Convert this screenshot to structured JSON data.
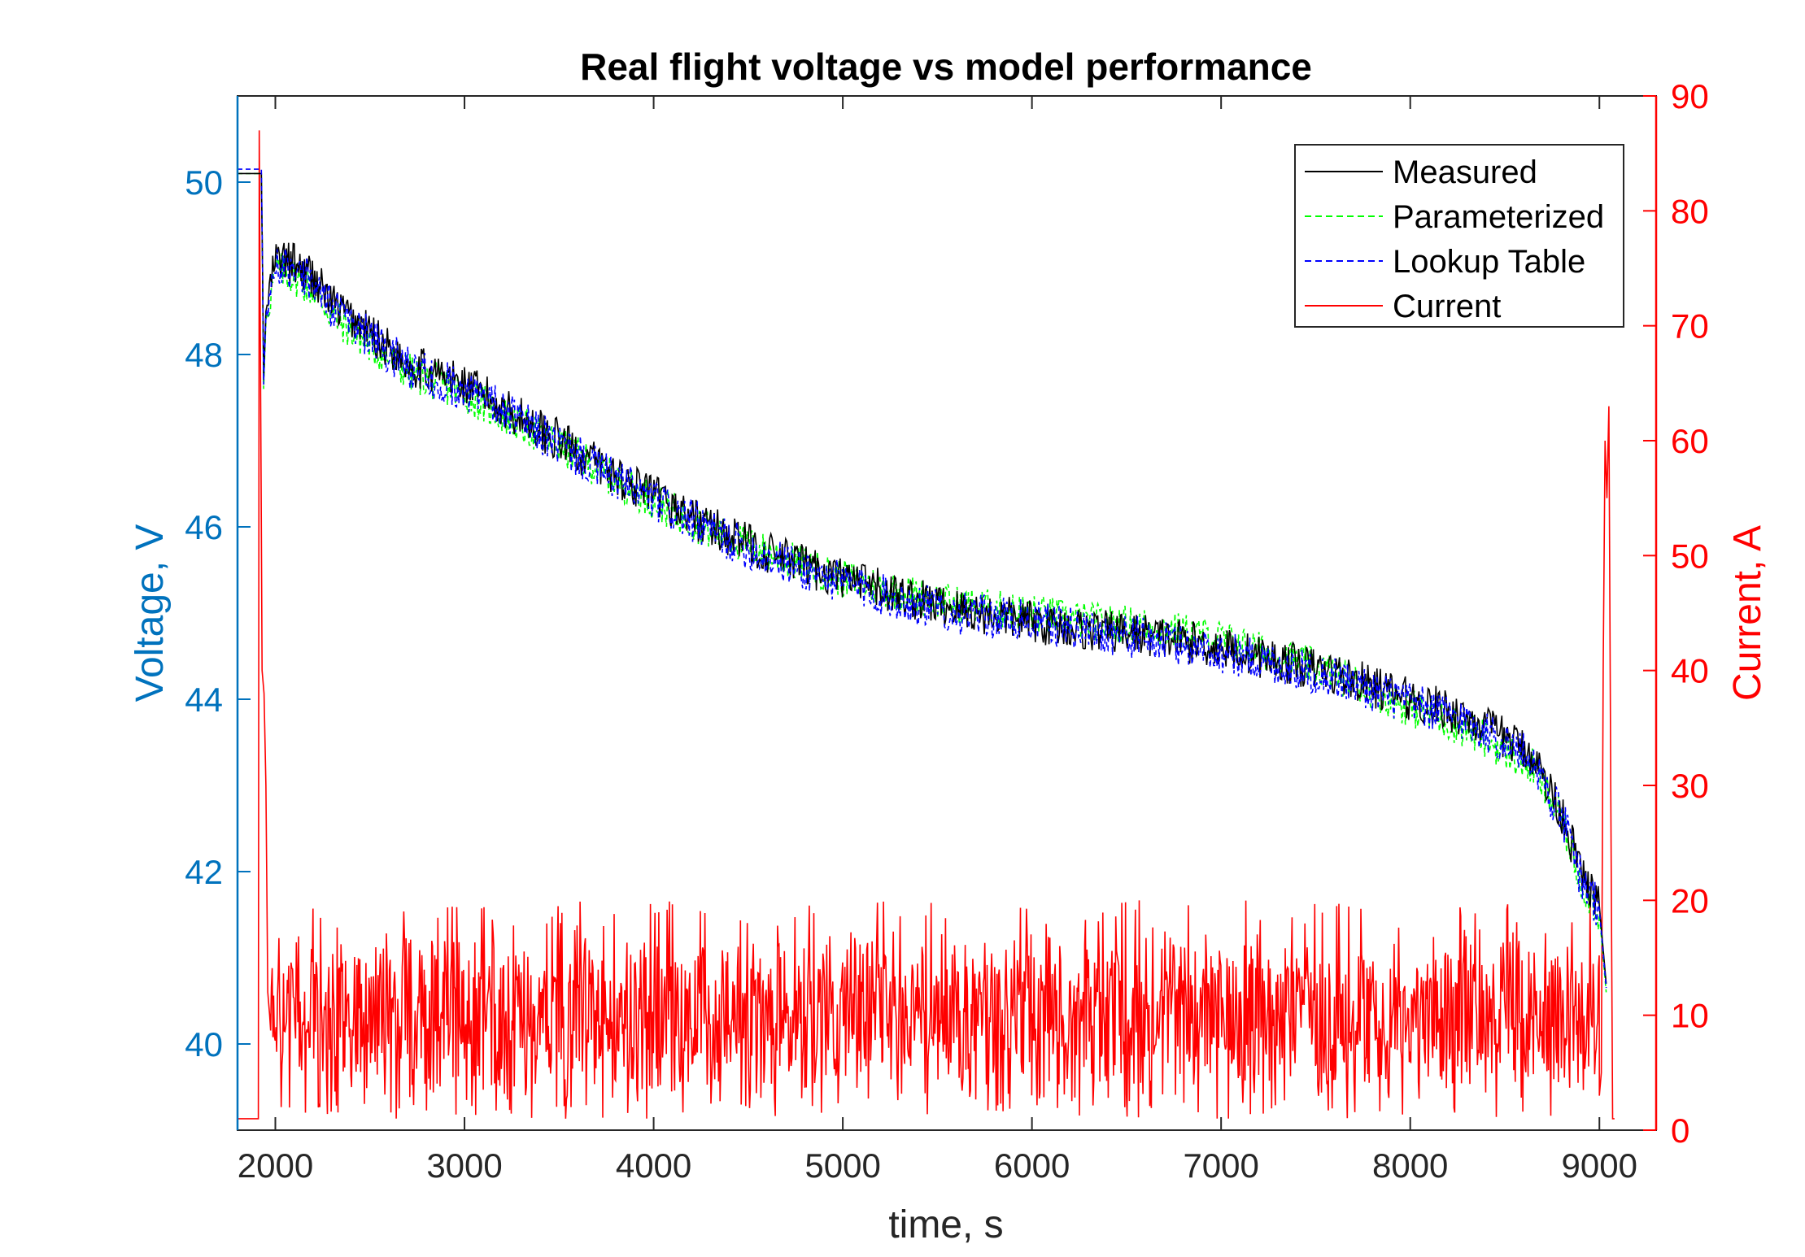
{
  "chart_data": {
    "type": "line",
    "title": "Real flight voltage vs model performance",
    "xlabel": "time, s",
    "ylabel_left": "Voltage, V",
    "ylabel_right": "Current, A",
    "xlim": [
      1800,
      9300
    ],
    "ylim_left": [
      39.0,
      51.0
    ],
    "ylim_right": [
      0,
      90
    ],
    "x_ticks": [
      2000,
      3000,
      4000,
      5000,
      6000,
      7000,
      8000,
      9000
    ],
    "y_ticks_left": [
      40,
      42,
      44,
      46,
      48,
      50
    ],
    "y_ticks_right": [
      0,
      10,
      20,
      30,
      40,
      50,
      60,
      70,
      80,
      90
    ],
    "grid": false,
    "legend_position": "top-right",
    "colors": {
      "measured": "#000000",
      "parameterized": "#00ff00",
      "lookup": "#0000ff",
      "current": "#ff0000",
      "left_axis": "#0072bd",
      "right_axis": "#ff0000"
    },
    "series": [
      {
        "name": "Measured",
        "axis": "left",
        "style": "solid",
        "x": [
          1800,
          1930,
          1935,
          1950,
          2000,
          2100,
          2200,
          2300,
          2500,
          2700,
          3000,
          3200,
          3500,
          3800,
          4000,
          4300,
          4600,
          5000,
          5300,
          5600,
          6000,
          6300,
          6600,
          7000,
          7300,
          7600,
          8000,
          8300,
          8500,
          8650,
          8700,
          8800,
          8900,
          9000,
          9040
        ],
        "y": [
          50.1,
          50.1,
          47.5,
          48.5,
          49.1,
          49.05,
          48.9,
          48.6,
          48.25,
          47.9,
          47.65,
          47.4,
          47.0,
          46.6,
          46.35,
          46.0,
          45.7,
          45.4,
          45.2,
          45.05,
          44.9,
          44.8,
          44.75,
          44.6,
          44.45,
          44.3,
          44.0,
          43.8,
          43.55,
          43.35,
          43.1,
          42.7,
          42.0,
          41.6,
          40.6
        ]
      },
      {
        "name": "Parameterized",
        "axis": "left",
        "style": "dashed",
        "x": [
          1800,
          1930,
          1935,
          1950,
          2000,
          2100,
          2200,
          2300,
          2500,
          2700,
          3000,
          3200,
          3500,
          3800,
          4000,
          4300,
          4600,
          5000,
          5300,
          5600,
          6000,
          6300,
          6600,
          7000,
          7300,
          7600,
          8000,
          8300,
          8500,
          8650,
          8700,
          8800,
          8900,
          9000,
          9040
        ],
        "y": [
          50.1,
          50.1,
          47.4,
          48.4,
          49.0,
          48.9,
          48.75,
          48.45,
          48.1,
          47.8,
          47.55,
          47.3,
          46.95,
          46.55,
          46.3,
          45.95,
          45.7,
          45.4,
          45.25,
          45.1,
          45.0,
          44.9,
          44.85,
          44.7,
          44.5,
          44.3,
          43.9,
          43.65,
          43.4,
          43.2,
          43.0,
          42.6,
          41.9,
          41.5,
          40.5
        ]
      },
      {
        "name": "Lookup Table",
        "axis": "left",
        "style": "dashed",
        "x": [
          1800,
          1930,
          1935,
          1950,
          2000,
          2100,
          2200,
          2300,
          2500,
          2700,
          3000,
          3200,
          3500,
          3800,
          4000,
          4300,
          4600,
          5000,
          5300,
          5600,
          6000,
          6300,
          6600,
          7000,
          7300,
          7600,
          8000,
          8300,
          8500,
          8650,
          8700,
          8800,
          8900,
          9000,
          9040
        ],
        "y": [
          50.15,
          50.15,
          47.45,
          48.45,
          49.05,
          49.0,
          48.85,
          48.55,
          48.2,
          47.85,
          47.6,
          47.35,
          46.95,
          46.55,
          46.3,
          45.95,
          45.65,
          45.35,
          45.15,
          45.0,
          44.9,
          44.8,
          44.7,
          44.55,
          44.4,
          44.25,
          43.95,
          43.75,
          43.5,
          43.3,
          43.05,
          42.65,
          41.95,
          41.55,
          40.55
        ]
      },
      {
        "name": "Current",
        "axis": "right",
        "style": "solid",
        "x": [
          1800,
          1900,
          1910,
          1915,
          1925,
          1930,
          1940,
          1950,
          1960,
          1970,
          2000,
          2500,
          3000,
          4000,
          5000,
          6000,
          7000,
          8000,
          8800,
          9000,
          9010,
          9020,
          9030,
          9040,
          9050,
          9060,
          9070,
          9080
        ],
        "y": [
          1,
          1,
          1,
          87,
          55,
          40,
          38,
          30,
          12,
          10,
          10,
          10,
          10,
          10,
          10,
          10,
          10,
          10,
          11,
          3,
          5,
          40,
          60,
          55,
          63,
          30,
          1,
          1
        ]
      }
    ],
    "current_noise_range": [
      1,
      20
    ]
  }
}
